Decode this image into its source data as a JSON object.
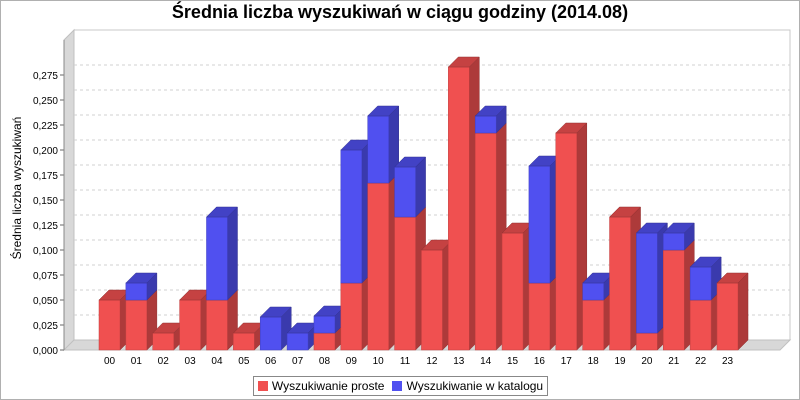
{
  "chart_data": {
    "type": "bar",
    "stacked": true,
    "style": "3d",
    "title": "Średnia liczba wyszukiwań w ciągu godziny (2014.08)",
    "xlabel": "",
    "ylabel": "Średnia liczba wyszukiwań",
    "ylim": [
      0,
      0.3
    ],
    "ytick_labels": [
      "0,000",
      "0,025",
      "0,050",
      "0,075",
      "0,100",
      "0,125",
      "0,150",
      "0,175",
      "0,200",
      "0,225",
      "0,250",
      "0,275"
    ],
    "grid": true,
    "legend_position": "bottom",
    "categories": [
      "00",
      "01",
      "02",
      "03",
      "04",
      "05",
      "06",
      "07",
      "08",
      "09",
      "10",
      "11",
      "12",
      "13",
      "14",
      "15",
      "16",
      "17",
      "18",
      "19",
      "20",
      "21",
      "22",
      "23"
    ],
    "series": [
      {
        "name": "Wyszukiwanie proste",
        "color": "#f05050",
        "values": [
          0.05,
          0.05,
          0.017,
          0.05,
          0.05,
          0.017,
          0.0,
          0.0,
          0.017,
          0.067,
          0.167,
          0.133,
          0.1,
          0.283,
          0.217,
          0.117,
          0.067,
          0.217,
          0.05,
          0.133,
          0.017,
          0.1,
          0.05,
          0.067
        ]
      },
      {
        "name": "Wyszukiwanie w katalogu",
        "color": "#5050f0",
        "values": [
          0.0,
          0.017,
          0.0,
          0.0,
          0.083,
          0.0,
          0.033,
          0.017,
          0.017,
          0.133,
          0.067,
          0.05,
          0.0,
          0.0,
          0.017,
          0.0,
          0.117,
          0.0,
          0.017,
          0.0,
          0.1,
          0.017,
          0.033,
          0.0
        ]
      }
    ]
  }
}
